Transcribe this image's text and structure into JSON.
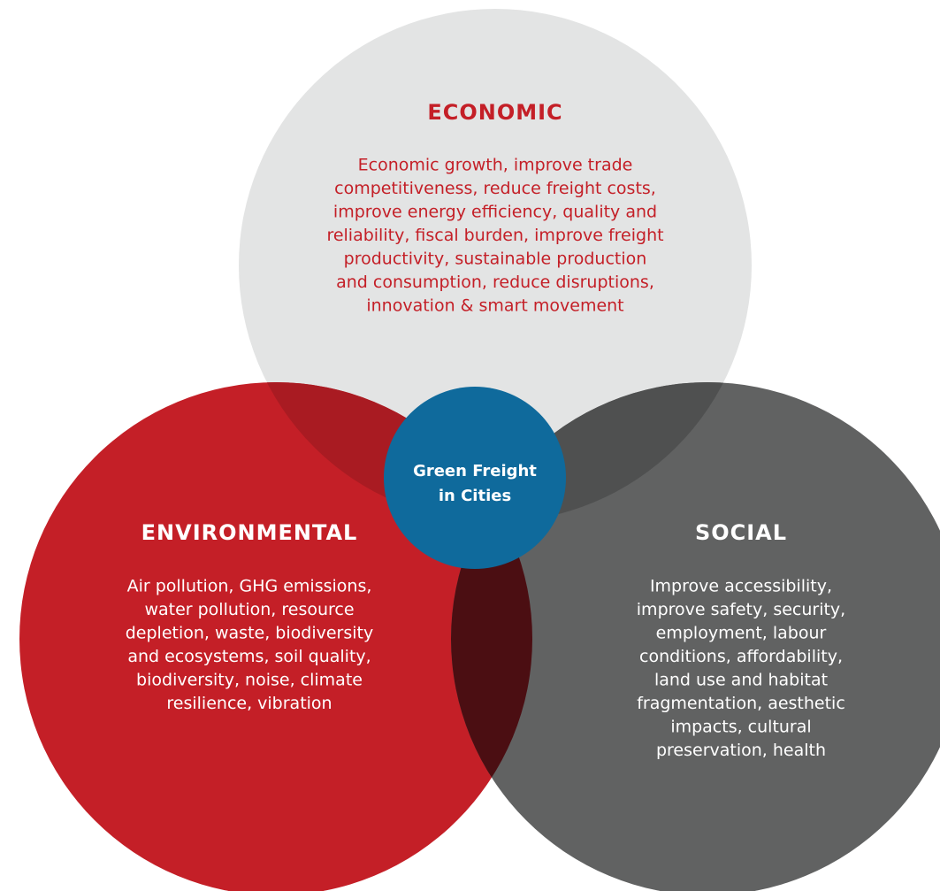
{
  "nodes": [
    {
      "title": "ECONOMIC",
      "lines": [
        "Economic growth, improve trade",
        "competitiveness, reduce freight costs,",
        "improve energy efficiency, quality and",
        "reliability, fiscal burden, improve freight",
        "productivity, sustainable production",
        "and consumption, reduce disruptions,",
        "innovation & smart movement"
      ]
    },
    {
      "title": "ENVIRONMENTAL",
      "lines": [
        "Air pollution, GHG emissions,",
        "water pollution, resource",
        "depletion, waste, biodiversity",
        "and ecosystems, soil quality,",
        "biodiversity, noise, climate",
        "resilience, vibration"
      ]
    },
    {
      "title": "SOCIAL",
      "lines": [
        "Improve accessibility,",
        "improve safety, security,",
        "employment, labour",
        "conditions, affordability,",
        "land use and habitat",
        "fragmentation, aesthetic",
        "impacts, cultural",
        "preservation, health"
      ]
    }
  ],
  "center": {
    "lines": [
      "Green Freight",
      "in Cities"
    ]
  }
}
